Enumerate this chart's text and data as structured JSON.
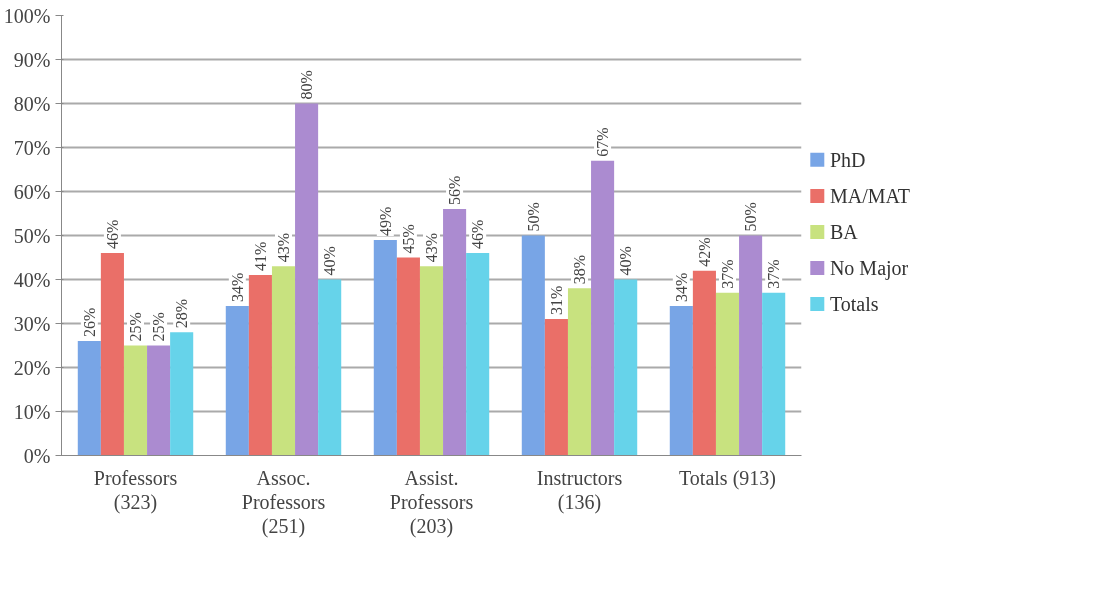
{
  "chart_data": {
    "type": "bar",
    "categories": [
      "Professors\n(323)",
      "Assoc.\nProfessors\n(251)",
      "Assist.\nProfessors\n(203)",
      "Instructors\n(136)",
      "Totals (913)"
    ],
    "series": [
      {
        "name": "PhD",
        "color": "#78a5e6",
        "values": [
          26,
          34,
          49,
          50,
          34
        ],
        "value_labels": [
          "26%",
          "34%",
          "49%",
          "50%",
          "34%"
        ]
      },
      {
        "name": "MA/MAT",
        "color": "#ea6f68",
        "values": [
          46,
          41,
          45,
          31,
          42
        ],
        "value_labels": [
          "46%",
          "41%",
          "45%",
          "31%",
          "42%"
        ]
      },
      {
        "name": "BA",
        "color": "#c8e27f",
        "values": [
          25,
          43,
          43,
          38,
          37
        ],
        "value_labels": [
          "25%",
          "43%",
          "43%",
          "38%",
          "37%"
        ]
      },
      {
        "name": "No Major",
        "color": "#ab8bd0",
        "values": [
          25,
          80,
          56,
          67,
          50
        ],
        "value_labels": [
          "25%",
          "80%",
          "56%",
          "67%",
          "50%"
        ]
      },
      {
        "name": "Totals",
        "color": "#66d3ea",
        "values": [
          28,
          40,
          46,
          40,
          37
        ],
        "value_labels": [
          "28%",
          "40%",
          "46%",
          "40%",
          "37%"
        ]
      }
    ],
    "ylim": [
      0,
      100
    ],
    "yticks": [
      {
        "value": 0,
        "label": "0%"
      },
      {
        "value": 10,
        "label": "10%"
      },
      {
        "value": 20,
        "label": "20%"
      },
      {
        "value": 30,
        "label": "30%"
      },
      {
        "value": 40,
        "label": "40%"
      },
      {
        "value": 50,
        "label": "50%"
      },
      {
        "value": 60,
        "label": "60%"
      },
      {
        "value": 70,
        "label": "70%"
      },
      {
        "value": 80,
        "label": "80%"
      },
      {
        "value": 90,
        "label": "90%"
      },
      {
        "value": 100,
        "label": "100%"
      }
    ],
    "grid": "y",
    "legend": "right"
  }
}
